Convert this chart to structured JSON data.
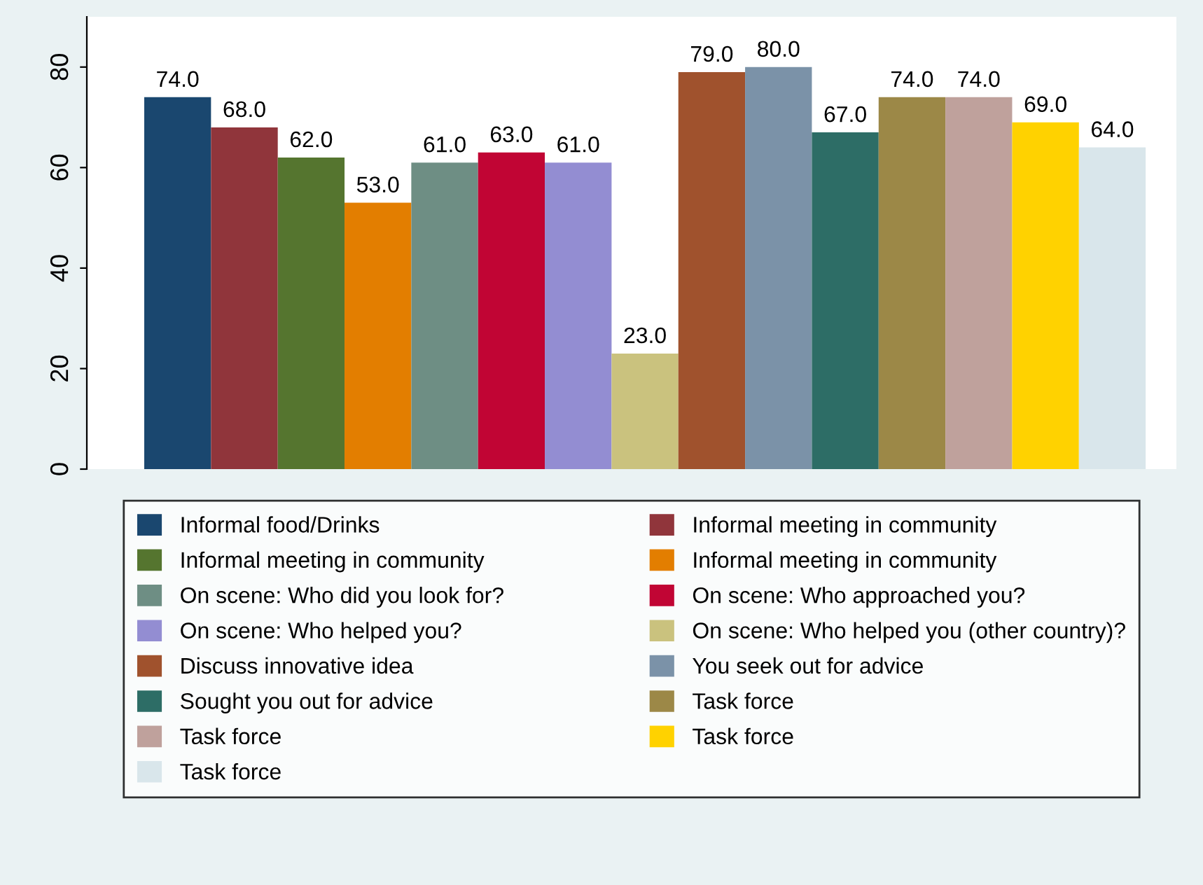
{
  "chart_data": {
    "type": "bar",
    "categories": [
      null
    ],
    "ylim": [
      0,
      90
    ],
    "yticks": [
      0,
      20,
      40,
      60,
      80
    ],
    "grid": false,
    "legend": "bottom",
    "series": [
      {
        "name": "Informal food/Drinks",
        "color": "#1a476f",
        "values": [
          74.0
        ],
        "value_labels": [
          "74.0"
        ]
      },
      {
        "name": "Informal meeting in community",
        "color": "#90353b",
        "values": [
          68.0
        ],
        "value_labels": [
          "68.0"
        ]
      },
      {
        "name": "Informal meeting in community",
        "color": "#55752f",
        "values": [
          62.0
        ],
        "value_labels": [
          "62.0"
        ]
      },
      {
        "name": "Informal meeting in community",
        "color": "#e37e00",
        "values": [
          53.0
        ],
        "value_labels": [
          "53.0"
        ]
      },
      {
        "name": "On scene: Who did you look for?",
        "color": "#6e8e84",
        "values": [
          61.0
        ],
        "value_labels": [
          "61.0"
        ]
      },
      {
        "name": "On scene: Who approached you?",
        "color": "#c10534",
        "values": [
          63.0
        ],
        "value_labels": [
          "63.0"
        ]
      },
      {
        "name": "On scene: Who helped you?",
        "color": "#938dd2",
        "values": [
          61.0
        ],
        "value_labels": [
          "61.0"
        ]
      },
      {
        "name": "On scene: Who helped you (other country)?",
        "color": "#cac27e",
        "values": [
          23.0
        ],
        "value_labels": [
          "23.0"
        ]
      },
      {
        "name": "Discuss innovative idea",
        "color": "#a0522d",
        "values": [
          79.0
        ],
        "value_labels": [
          "79.0"
        ]
      },
      {
        "name": "You seek out for advice",
        "color": "#7b92a8",
        "values": [
          80.0
        ],
        "value_labels": [
          "80.0"
        ]
      },
      {
        "name": "Sought you out for advice",
        "color": "#2d6d66",
        "values": [
          67.0
        ],
        "value_labels": [
          "67.0"
        ]
      },
      {
        "name": "Task force",
        "color": "#9c8847",
        "values": [
          74.0
        ],
        "value_labels": [
          "74.0"
        ]
      },
      {
        "name": "Task force",
        "color": "#bfa19c",
        "values": [
          74.0
        ],
        "value_labels": [
          "74.0"
        ]
      },
      {
        "name": "Task force",
        "color": "#ffd200",
        "values": [
          69.0
        ],
        "value_labels": [
          "69.0"
        ]
      },
      {
        "name": "Task force",
        "color": "#d9e6eb",
        "values": [
          64.0
        ],
        "value_labels": [
          "64.0"
        ]
      }
    ]
  }
}
